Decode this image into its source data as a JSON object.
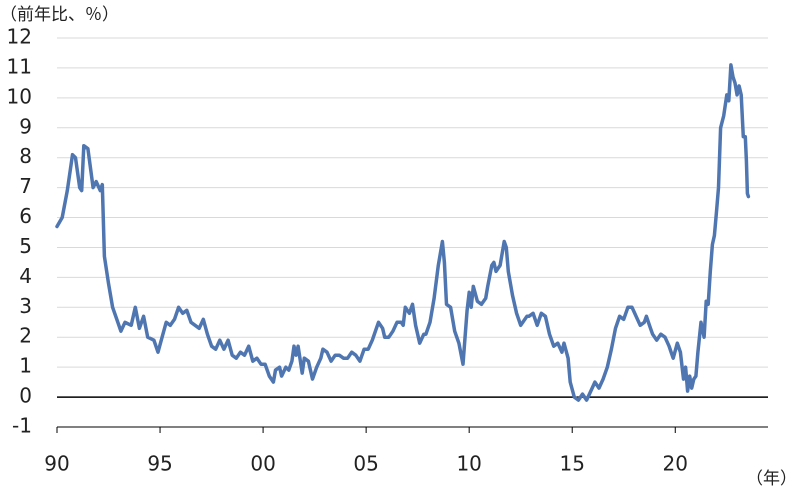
{
  "chart_data": {
    "type": "line",
    "y_label": "（前年比、％）",
    "x_label": "（年）",
    "xlim": [
      1990,
      2024.5
    ],
    "ylim": [
      -1,
      12
    ],
    "xticks": [
      {
        "value": 1990,
        "label": "90"
      },
      {
        "value": 1995,
        "label": "95"
      },
      {
        "value": 2000,
        "label": "00"
      },
      {
        "value": 2005,
        "label": "05"
      },
      {
        "value": 2010,
        "label": "10"
      },
      {
        "value": 2015,
        "label": "15"
      },
      {
        "value": 2020,
        "label": "20"
      }
    ],
    "yticks": [
      -1,
      0,
      1,
      2,
      3,
      4,
      5,
      6,
      7,
      8,
      9,
      10,
      11,
      12
    ],
    "grid": true,
    "series": [
      {
        "color": "#4f76b0",
        "x": [
          1990.0,
          1990.25,
          1990.5,
          1990.75,
          1990.9,
          1991.1,
          1991.2,
          1991.3,
          1991.5,
          1991.75,
          1991.9,
          1992.1,
          1992.2,
          1992.3,
          1992.5,
          1992.7,
          1992.9,
          1993.1,
          1993.3,
          1993.6,
          1993.8,
          1994.0,
          1994.2,
          1994.4,
          1994.7,
          1994.9,
          1995.1,
          1995.3,
          1995.5,
          1995.7,
          1995.9,
          1996.1,
          1996.3,
          1996.5,
          1996.7,
          1996.9,
          1997.1,
          1997.3,
          1997.5,
          1997.7,
          1997.9,
          1998.1,
          1998.3,
          1998.5,
          1998.7,
          1998.9,
          1999.1,
          1999.3,
          1999.5,
          1999.7,
          1999.9,
          2000.1,
          2000.3,
          2000.5,
          2000.6,
          2000.8,
          2000.9,
          2001.1,
          2001.25,
          2001.4,
          2001.5,
          2001.6,
          2001.7,
          2001.9,
          2002.0,
          2002.2,
          2002.4,
          2002.6,
          2002.8,
          2002.9,
          2003.1,
          2003.3,
          2003.5,
          2003.7,
          2003.9,
          2004.1,
          2004.3,
          2004.5,
          2004.7,
          2004.9,
          2005.1,
          2005.3,
          2005.5,
          2005.6,
          2005.8,
          2005.9,
          2006.1,
          2006.3,
          2006.5,
          2006.7,
          2006.8,
          2006.9,
          2007.1,
          2007.25,
          2007.4,
          2007.6,
          2007.8,
          2007.9,
          2008.1,
          2008.3,
          2008.5,
          2008.7,
          2008.8,
          2008.9,
          2009.1,
          2009.3,
          2009.5,
          2009.7,
          2009.9,
          2010.0,
          2010.1,
          2010.2,
          2010.4,
          2010.6,
          2010.8,
          2010.9,
          2011.1,
          2011.2,
          2011.3,
          2011.5,
          2011.7,
          2011.8,
          2011.9,
          2012.1,
          2012.3,
          2012.5,
          2012.6,
          2012.8,
          2012.9,
          2013.1,
          2013.3,
          2013.5,
          2013.7,
          2013.9,
          2014.1,
          2014.3,
          2014.5,
          2014.6,
          2014.8,
          2014.9,
          2015.1,
          2015.3,
          2015.5,
          2015.7,
          2015.9,
          2016.1,
          2016.3,
          2016.5,
          2016.7,
          2016.9,
          2017.1,
          2017.3,
          2017.5,
          2017.7,
          2017.9,
          2018.1,
          2018.3,
          2018.5,
          2018.6,
          2018.8,
          2018.9,
          2019.1,
          2019.3,
          2019.5,
          2019.7,
          2019.8,
          2019.9,
          2020.1,
          2020.25,
          2020.4,
          2020.5,
          2020.6,
          2020.7,
          2020.8,
          2020.9,
          2021.0,
          2021.1,
          2021.25,
          2021.4,
          2021.5,
          2021.6,
          2021.7,
          2021.8,
          2021.9,
          2022.0,
          2022.1,
          2022.2,
          2022.35,
          2022.5,
          2022.6,
          2022.7,
          2022.8,
          2022.9,
          2023.0,
          2023.1,
          2023.2,
          2023.3,
          2023.4,
          2023.45,
          2023.5,
          2023.55
        ],
        "values": [
          5.7,
          6.0,
          6.9,
          8.1,
          8.0,
          7.0,
          6.9,
          8.4,
          8.3,
          7.0,
          7.2,
          6.9,
          7.1,
          4.7,
          3.8,
          3.0,
          2.6,
          2.2,
          2.5,
          2.4,
          3.0,
          2.3,
          2.7,
          2.0,
          1.9,
          1.5,
          2.0,
          2.5,
          2.4,
          2.6,
          3.0,
          2.8,
          2.9,
          2.5,
          2.4,
          2.3,
          2.6,
          2.1,
          1.7,
          1.6,
          1.9,
          1.6,
          1.9,
          1.4,
          1.3,
          1.5,
          1.4,
          1.7,
          1.2,
          1.3,
          1.1,
          1.1,
          0.7,
          0.5,
          0.9,
          1.0,
          0.7,
          1.0,
          0.9,
          1.2,
          1.7,
          1.4,
          1.7,
          0.8,
          1.3,
          1.2,
          0.6,
          1.0,
          1.3,
          1.6,
          1.5,
          1.2,
          1.4,
          1.4,
          1.3,
          1.3,
          1.5,
          1.4,
          1.2,
          1.6,
          1.6,
          1.9,
          2.3,
          2.5,
          2.3,
          2.0,
          2.0,
          2.2,
          2.5,
          2.5,
          2.4,
          3.0,
          2.8,
          3.1,
          2.4,
          1.8,
          2.1,
          2.1,
          2.5,
          3.3,
          4.4,
          5.2,
          4.5,
          3.1,
          3.0,
          2.2,
          1.8,
          1.1,
          2.9,
          3.5,
          3.0,
          3.7,
          3.2,
          3.1,
          3.3,
          3.7,
          4.4,
          4.5,
          4.2,
          4.4,
          5.2,
          5.0,
          4.2,
          3.4,
          2.8,
          2.4,
          2.5,
          2.7,
          2.7,
          2.8,
          2.4,
          2.8,
          2.7,
          2.1,
          1.7,
          1.8,
          1.5,
          1.8,
          1.3,
          0.5,
          0.0,
          -0.1,
          0.1,
          -0.1,
          0.2,
          0.5,
          0.3,
          0.6,
          1.0,
          1.6,
          2.3,
          2.7,
          2.6,
          3.0,
          3.0,
          2.7,
          2.4,
          2.5,
          2.7,
          2.3,
          2.1,
          1.9,
          2.1,
          2.0,
          1.7,
          1.5,
          1.3,
          1.8,
          1.5,
          0.6,
          1.0,
          0.2,
          0.7,
          0.3,
          0.6,
          0.7,
          1.5,
          2.5,
          2.0,
          3.2,
          3.1,
          4.2,
          5.1,
          5.4,
          6.2,
          7.0,
          9.0,
          9.4,
          10.1,
          9.9,
          11.1,
          10.7,
          10.5,
          10.1,
          10.4,
          10.1,
          8.7,
          8.7,
          7.9,
          6.8,
          6.7
        ]
      }
    ]
  }
}
